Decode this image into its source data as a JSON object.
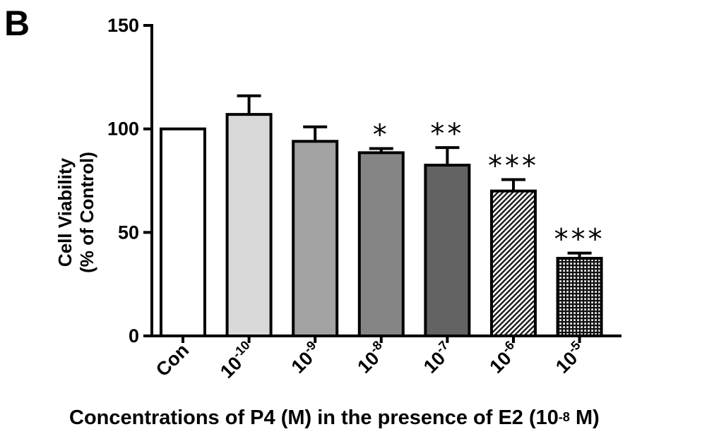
{
  "panel_label": "B",
  "chart_data": {
    "type": "bar",
    "title": "",
    "ylabel_line1": "Cell Viability",
    "ylabel_line2": "(% of Control)",
    "xlabel_prefix": "Concentrations of P4 (M) in the presence of E2 (10",
    "xlabel_exponent": "-8",
    "xlabel_suffix": " M)",
    "ylim": [
      0,
      150
    ],
    "yticks": [
      "0",
      "50",
      "100",
      "150"
    ],
    "categories": [
      {
        "base": "Con",
        "exp": ""
      },
      {
        "base": "10",
        "exp": "-10"
      },
      {
        "base": "10",
        "exp": "-9"
      },
      {
        "base": "10",
        "exp": "-8"
      },
      {
        "base": "10",
        "exp": "-7"
      },
      {
        "base": "10",
        "exp": "-6"
      },
      {
        "base": "10",
        "exp": "-5"
      }
    ],
    "values": [
      100,
      107,
      94,
      88.5,
      82.5,
      70,
      37.5
    ],
    "errors": [
      0,
      9,
      7,
      2,
      8.5,
      5.5,
      2.5
    ],
    "significance": [
      "",
      "",
      "",
      "*",
      "**",
      "***",
      "***"
    ],
    "fills": [
      "#ffffff",
      "#d9d9d9",
      "#a3a3a3",
      "#858585",
      "#636363",
      "diagonal-hatch",
      "grid-hatch"
    ]
  }
}
